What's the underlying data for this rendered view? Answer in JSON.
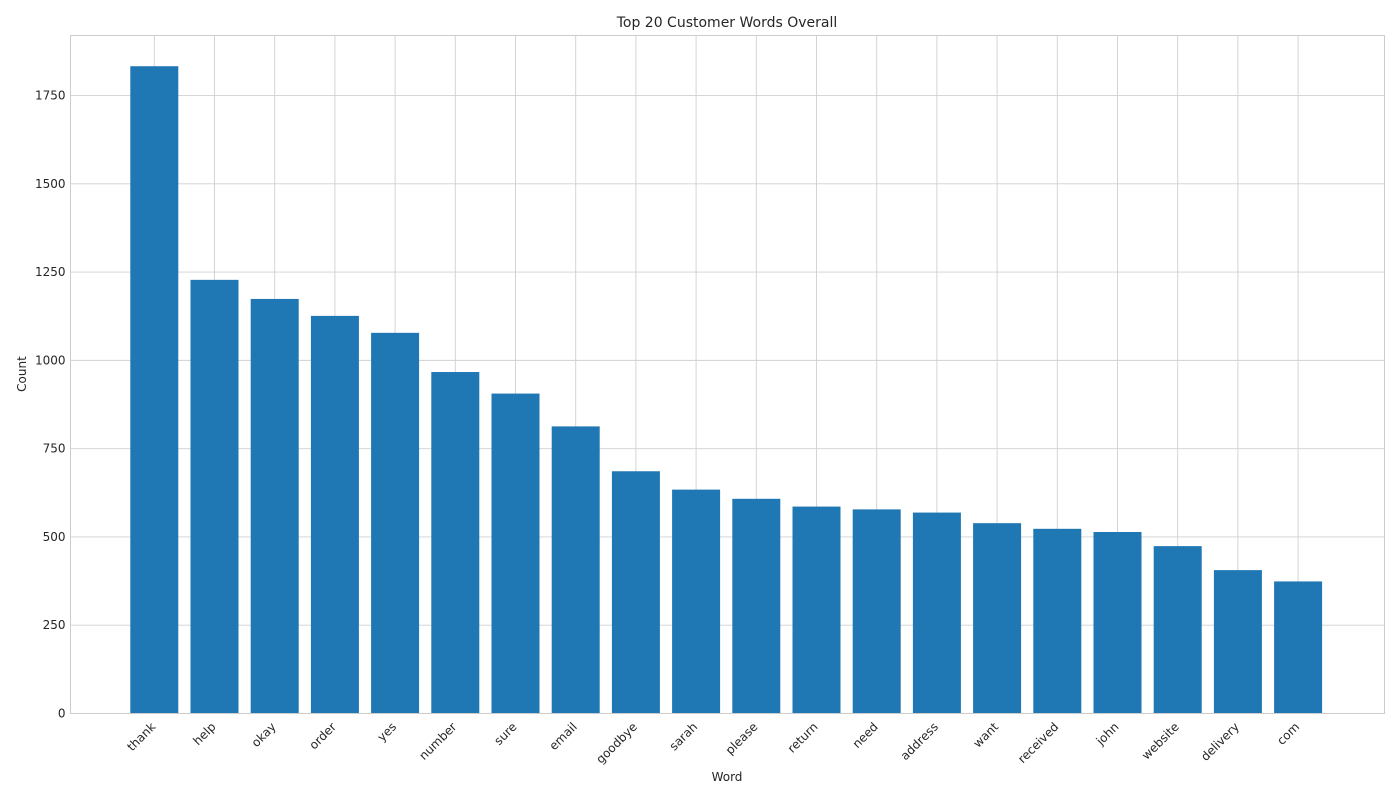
{
  "chart_data": {
    "type": "bar",
    "title": "Top 20 Customer Words Overall",
    "xlabel": "Word",
    "ylabel": "Count",
    "categories": [
      "thank",
      "help",
      "okay",
      "order",
      "yes",
      "number",
      "sure",
      "email",
      "goodbye",
      "sarah",
      "please",
      "return",
      "need",
      "address",
      "want",
      "received",
      "john",
      "website",
      "delivery",
      "com"
    ],
    "values": [
      1833,
      1228,
      1174,
      1126,
      1078,
      967,
      906,
      813,
      686,
      634,
      608,
      586,
      578,
      569,
      539,
      523,
      514,
      474,
      406,
      374
    ],
    "ylim": [
      0,
      1920
    ],
    "yticks": [
      0,
      250,
      500,
      750,
      1000,
      1250,
      1500,
      1750
    ],
    "grid": true,
    "bar_color": "#1f77b4"
  }
}
